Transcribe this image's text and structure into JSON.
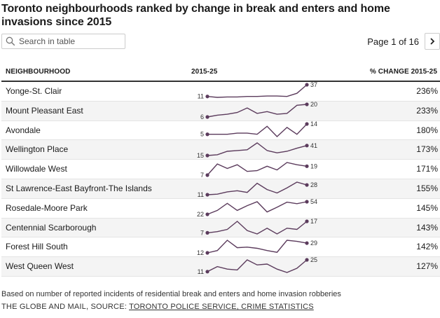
{
  "title": "Toronto neighbourhoods ranked by change in break and enters and home invasions since 2015",
  "search": {
    "placeholder": "Search in table",
    "value": ""
  },
  "pager": {
    "label": "Page 1 of 16",
    "next_icon": "chevron-right-icon"
  },
  "table": {
    "headers": {
      "name": "NEIGHBOURHOOD",
      "spark": "2015-25",
      "pct": "% CHANGE 2015-25"
    },
    "rows": [
      {
        "name": "Yonge-St. Clair",
        "start": 11,
        "end": 37,
        "pct": "236%",
        "trend": [
          11,
          9,
          10,
          10,
          11,
          11,
          12,
          12,
          11,
          18,
          37
        ]
      },
      {
        "name": "Mount Pleasant East",
        "start": 6,
        "end": 20,
        "pct": "233%",
        "trend": [
          6,
          8,
          9,
          11,
          16,
          10,
          12,
          9,
          10,
          19,
          20
        ]
      },
      {
        "name": "Avondale",
        "start": 5,
        "end": 14,
        "pct": "180%",
        "trend": [
          5,
          5,
          5,
          6,
          6,
          5,
          12,
          3,
          11,
          5,
          14
        ]
      },
      {
        "name": "Wellington Place",
        "start": 15,
        "end": 41,
        "pct": "173%",
        "trend": [
          15,
          17,
          26,
          28,
          30,
          48,
          28,
          22,
          26,
          34,
          41
        ]
      },
      {
        "name": "Willowdale West",
        "start": 7,
        "end": 19,
        "pct": "171%",
        "trend": [
          7,
          22,
          16,
          21,
          12,
          13,
          19,
          14,
          24,
          21,
          19
        ]
      },
      {
        "name": "St Lawrence-East Bayfront-The Islands",
        "start": 11,
        "end": 28,
        "pct": "155%",
        "trend": [
          11,
          12,
          16,
          18,
          15,
          31,
          20,
          14,
          23,
          33,
          28
        ]
      },
      {
        "name": "Rosedale-Moore Park",
        "start": 22,
        "end": 54,
        "pct": "145%",
        "trend": [
          22,
          32,
          50,
          32,
          44,
          54,
          28,
          40,
          53,
          49,
          54
        ]
      },
      {
        "name": "Centennial Scarborough",
        "start": 7,
        "end": 17,
        "pct": "143%",
        "trend": [
          7,
          8,
          10,
          17,
          9,
          6,
          11,
          6,
          11,
          10,
          17
        ]
      },
      {
        "name": "Forest Hill South",
        "start": 12,
        "end": 29,
        "pct": "142%",
        "trend": [
          12,
          16,
          34,
          21,
          22,
          20,
          16,
          13,
          34,
          32,
          29
        ]
      },
      {
        "name": "West Queen West",
        "start": 11,
        "end": 25,
        "pct": "127%",
        "trend": [
          11,
          17,
          14,
          13,
          25,
          19,
          20,
          14,
          10,
          15,
          25
        ]
      }
    ]
  },
  "footer": {
    "note": "Based on number of reported incidents of residential break and enters and home invasion robberies",
    "source_prefix": "THE GLOBE AND MAIL, SOURCE: ",
    "source_link": "TORONTO POLICE SERVICE, CRIME STATISTICS"
  },
  "colors": {
    "line": "#5b3b5c",
    "dot": "#5b3b5c",
    "rule": "#333333",
    "stripe": "#f4f4f4"
  }
}
